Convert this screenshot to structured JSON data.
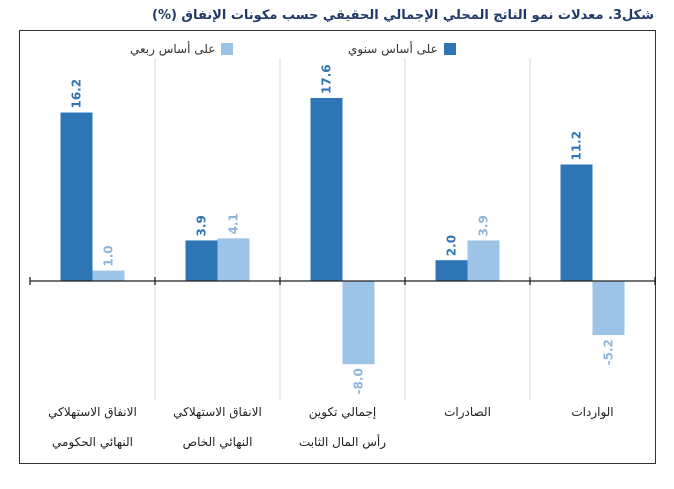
{
  "title": "شكل3. معدلات نمو الناتج المحلي الإجمالي الحقيقي حسب مكونات الإنفاق (%)",
  "chart_data": {
    "type": "bar",
    "categories": [
      [
        "الواردات"
      ],
      [
        "الصادرات"
      ],
      [
        "إجمالي تكوين",
        "رأس المال الثابت"
      ],
      [
        "الانفاق الاستهلاكي",
        "النهائي الخاص"
      ],
      [
        "الانفاق الاستهلاكي",
        "النهائي الحكومي"
      ]
    ],
    "series": [
      {
        "name": "على أساس سنوي",
        "color": "#2e75b6",
        "values": [
          11.2,
          2.0,
          17.6,
          3.9,
          16.2
        ]
      },
      {
        "name": "على أساس ربعي",
        "color": "#9dc3e6",
        "values": [
          -5.2,
          3.9,
          -8.0,
          4.1,
          1.0
        ]
      }
    ],
    "value_labels": [
      [
        "11.2",
        "2.0",
        "17.6",
        "3.9",
        "16.2"
      ],
      [
        "-5.2",
        "3.9",
        "-8.0",
        "4.1",
        "1.0"
      ]
    ],
    "ylim": [
      -10.4,
      18.6
    ],
    "grid": "vertical separators between categories",
    "legend": "top-center",
    "direction": "rtl"
  }
}
